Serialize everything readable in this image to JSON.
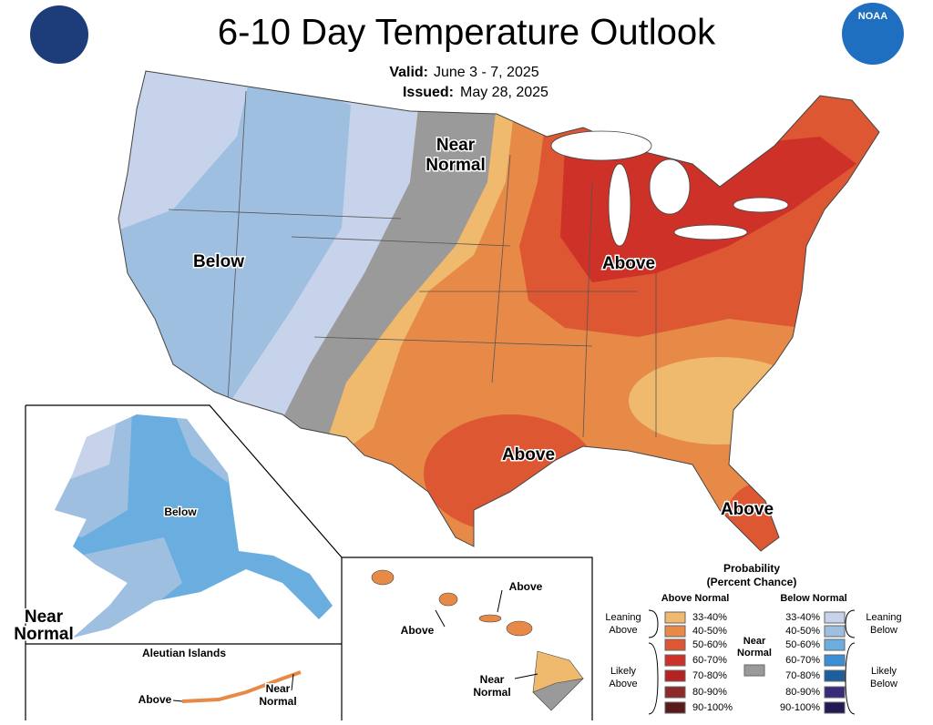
{
  "header": {
    "title": "6-10 Day Temperature Outlook",
    "valid_label": "Valid:",
    "valid": "June 3 - 7, 2025",
    "issued_label": "Issued:",
    "issued": "May 28, 2025",
    "noaa_logo": "NOAA"
  },
  "map_labels": [
    {
      "lines": [
        "Near",
        "Normal"
      ]
    },
    {
      "lines": [
        "Below"
      ]
    },
    {
      "lines": [
        "Above"
      ]
    },
    {
      "lines": [
        "Above"
      ]
    },
    {
      "lines": [
        "Above"
      ]
    },
    {
      "lines": [
        "Below"
      ]
    },
    {
      "lines": [
        "Near",
        "Normal"
      ]
    },
    {
      "lines": [
        "Above"
      ]
    },
    {
      "lines": [
        "Near",
        "Normal"
      ]
    },
    {
      "lines": [
        "Above"
      ]
    },
    {
      "lines": [
        "Above"
      ]
    },
    {
      "lines": [
        "Near",
        "Normal"
      ]
    }
  ],
  "insets": {
    "aleutian_title": "Aleutian Islands"
  },
  "legend": {
    "title": "Probability",
    "subtitle": "(Percent Chance)",
    "above_header": "Above Normal",
    "below_header": "Below Normal",
    "near": {
      "lines": [
        "Near",
        "Normal"
      ],
      "color": "#9a9a9a"
    },
    "above": [
      {
        "range": "33-40%",
        "color": "#efb96e"
      },
      {
        "range": "40-50%",
        "color": "#e88a47"
      },
      {
        "range": "50-60%",
        "color": "#dc5732"
      },
      {
        "range": "60-70%",
        "color": "#cd3128"
      },
      {
        "range": "70-80%",
        "color": "#b42222"
      },
      {
        "range": "80-90%",
        "color": "#8c2a2a"
      },
      {
        "range": "90-100%",
        "color": "#5a1a1a"
      }
    ],
    "below": [
      {
        "range": "33-40%",
        "color": "#c6d3ea"
      },
      {
        "range": "40-50%",
        "color": "#9fbfe0"
      },
      {
        "range": "50-60%",
        "color": "#6aaee0"
      },
      {
        "range": "60-70%",
        "color": "#3a8fd6"
      },
      {
        "range": "70-80%",
        "color": "#1c5e9e"
      },
      {
        "range": "80-90%",
        "color": "#3a2a7a"
      },
      {
        "range": "90-100%",
        "color": "#221a55"
      }
    ],
    "groups": [
      {
        "lines": [
          "Leaning",
          "Above"
        ]
      },
      {
        "lines": [
          "Likely",
          "Above"
        ]
      },
      {
        "lines": [
          "Leaning",
          "Below"
        ]
      },
      {
        "lines": [
          "Likely",
          "Below"
        ]
      }
    ]
  }
}
